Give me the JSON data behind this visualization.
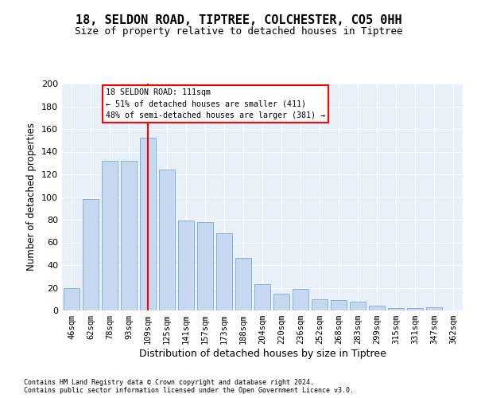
{
  "title1": "18, SELDON ROAD, TIPTREE, COLCHESTER, CO5 0HH",
  "title2": "Size of property relative to detached houses in Tiptree",
  "xlabel": "Distribution of detached houses by size in Tiptree",
  "ylabel": "Number of detached properties",
  "categories": [
    "46sqm",
    "62sqm",
    "78sqm",
    "93sqm",
    "109sqm",
    "125sqm",
    "141sqm",
    "157sqm",
    "173sqm",
    "188sqm",
    "204sqm",
    "220sqm",
    "236sqm",
    "252sqm",
    "268sqm",
    "283sqm",
    "299sqm",
    "315sqm",
    "331sqm",
    "347sqm",
    "362sqm"
  ],
  "values": [
    20,
    98,
    132,
    132,
    152,
    124,
    79,
    78,
    68,
    46,
    23,
    15,
    19,
    10,
    9,
    8,
    4,
    2,
    2,
    3,
    0
  ],
  "bar_color": "#c5d8f0",
  "bar_edge_color": "#7aaad0",
  "red_line_color": "red",
  "background_color": "#e8f0fa",
  "ylim_max": 200,
  "yticks": [
    0,
    20,
    40,
    60,
    80,
    100,
    120,
    140,
    160,
    180,
    200
  ],
  "annotation_line1": "18 SELDON ROAD: 111sqm",
  "annotation_line2": "← 51% of detached houses are smaller (411)",
  "annotation_line3": "48% of semi-detached houses are larger (381) →",
  "footer_line1": "Contains HM Land Registry data © Crown copyright and database right 2024.",
  "footer_line2": "Contains public sector information licensed under the Open Government Licence v3.0."
}
